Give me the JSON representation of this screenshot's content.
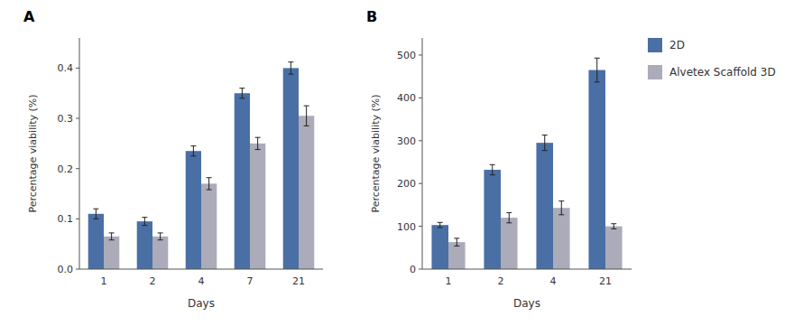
{
  "chart_data": [
    {
      "type": "bar",
      "title": "A",
      "categories": [
        "1",
        "2",
        "4",
        "7",
        "21"
      ],
      "series": [
        {
          "color": "#4A6FA5",
          "values": [
            0.11,
            0.095,
            0.235,
            0.35,
            0.4
          ],
          "errors": [
            0.01,
            0.008,
            0.01,
            0.01,
            0.012
          ]
        },
        {
          "color": "#ABABBA",
          "values": [
            0.065,
            0.065,
            0.17,
            0.25,
            0.305
          ],
          "errors": [
            0.007,
            0.007,
            0.012,
            0.012,
            0.02
          ]
        }
      ],
      "x_label": "Days",
      "y_label": "Percentage viability (%)",
      "ylim": [
        0,
        0.46
      ],
      "yticks": [
        {
          "value": 0,
          "label": "0.0"
        },
        0.1,
        0.2,
        0.3,
        0.4
      ],
      "grid": false
    },
    {
      "type": "bar",
      "title": "B",
      "categories": [
        "1",
        "2",
        "4",
        "21"
      ],
      "series": [
        {
          "name": "2D",
          "color": "#4A6FA5",
          "values": [
            103,
            232,
            295,
            465
          ],
          "errors": [
            6,
            12,
            18,
            28
          ]
        },
        {
          "name": "Alvetex Scaffold 3D",
          "color": "#ABABBA",
          "values": [
            63,
            120,
            143,
            100
          ],
          "errors": [
            9,
            12,
            16,
            6
          ]
        }
      ],
      "x_label": "Days",
      "y_label": "Percentage viability (%)",
      "ylim": [
        0,
        540
      ],
      "yticks": [
        0,
        100,
        200,
        300,
        400,
        500
      ],
      "grid": false,
      "legend": "right"
    }
  ]
}
